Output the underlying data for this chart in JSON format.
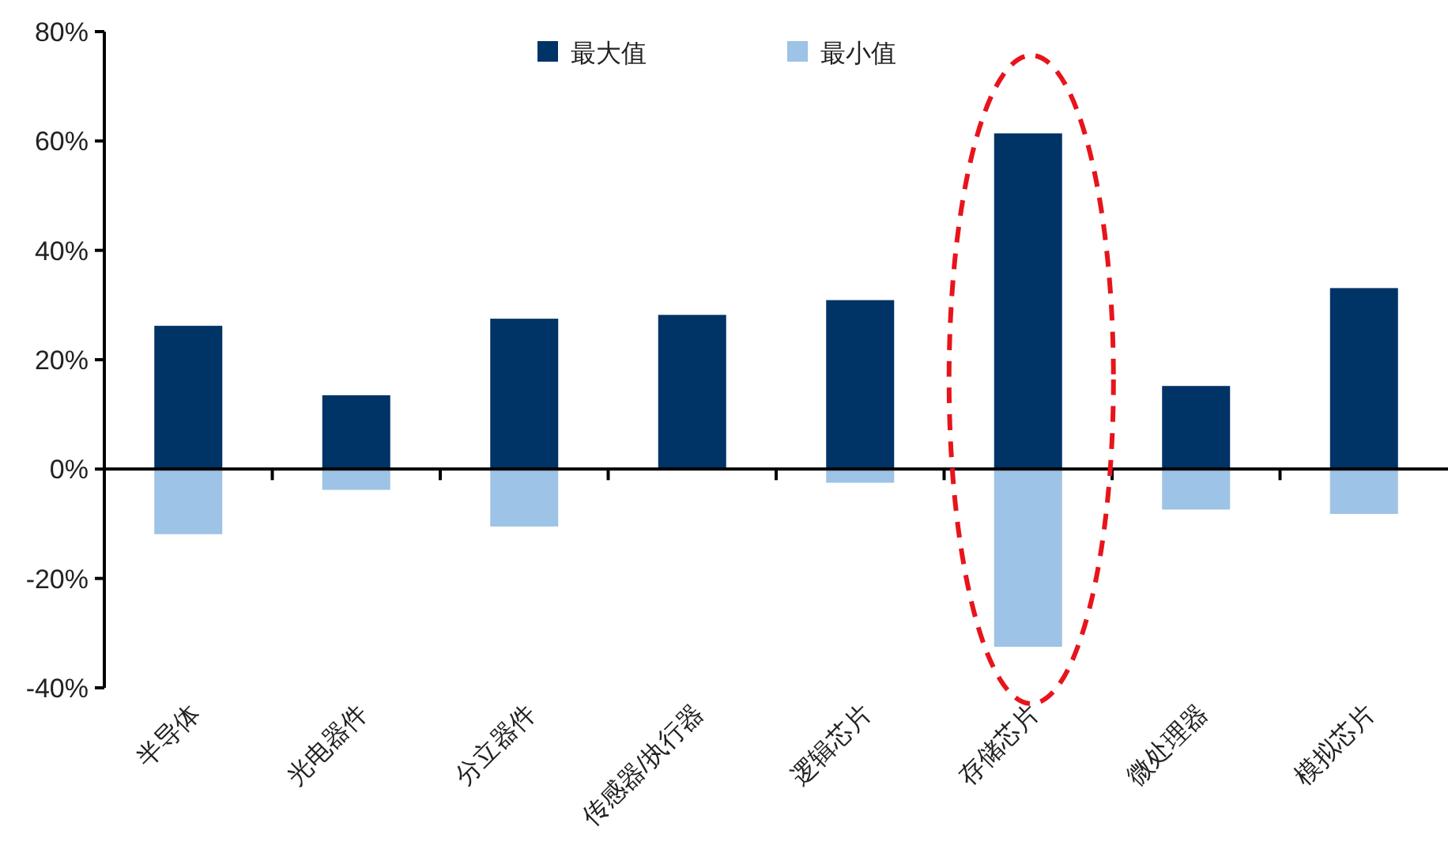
{
  "chart_data": {
    "type": "bar",
    "categories": [
      "半导体",
      "光电器件",
      "分立器件",
      "传感器/执行器",
      "逻辑芯片",
      "存储芯片",
      "微处理器",
      "模拟芯片"
    ],
    "series": [
      {
        "name": "最大值",
        "color": "#003366",
        "values": [
          26.2,
          13.5,
          27.5,
          28.2,
          30.9,
          61.4,
          15.2,
          33.1
        ]
      },
      {
        "name": "最小值",
        "color": "#9dc3e6",
        "values": [
          -11.9,
          -3.8,
          -10.5,
          null,
          -2.5,
          -32.5,
          -7.4,
          -8.2
        ]
      }
    ],
    "ylim": [
      -40,
      80
    ],
    "yticks": [
      {
        "value": -40,
        "label": "-40%"
      },
      {
        "value": -20,
        "label": "-20%"
      },
      {
        "value": 0,
        "label": "0%"
      },
      {
        "value": 20,
        "label": "20%"
      },
      {
        "value": 40,
        "label": "40%"
      },
      {
        "value": 60,
        "label": "60%"
      },
      {
        "value": 80,
        "label": "80%"
      }
    ],
    "legend": "top",
    "stacked": true
  }
}
